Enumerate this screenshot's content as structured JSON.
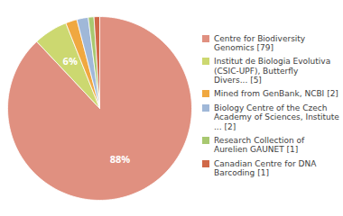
{
  "chart_data": {
    "type": "pie",
    "categories": [
      "Centre for Biodiversity\nGenomics [79]",
      "Institut de Biologia Evolutiva\n(CSIC-UPF), Butterfly\nDivers... [5]",
      "Mined from GenBank, NCBI [2]",
      "Biology Centre of the Czech\nAcademy of Sciences, Institute\n... [2]",
      "Research Collection of\nAurelien GAUNET [1]",
      "Canadian Centre for DNA\nBarcoding [1]"
    ],
    "values": [
      88,
      6,
      2,
      2,
      1,
      1
    ],
    "value_labels": [
      "88%",
      "6%",
      null,
      null,
      null,
      null
    ],
    "data_labels": true,
    "colors": [
      "#e09080",
      "#ccd870",
      "#f0a840",
      "#a0b8d8",
      "#a8c870",
      "#d06848"
    ],
    "legend": "right"
  }
}
